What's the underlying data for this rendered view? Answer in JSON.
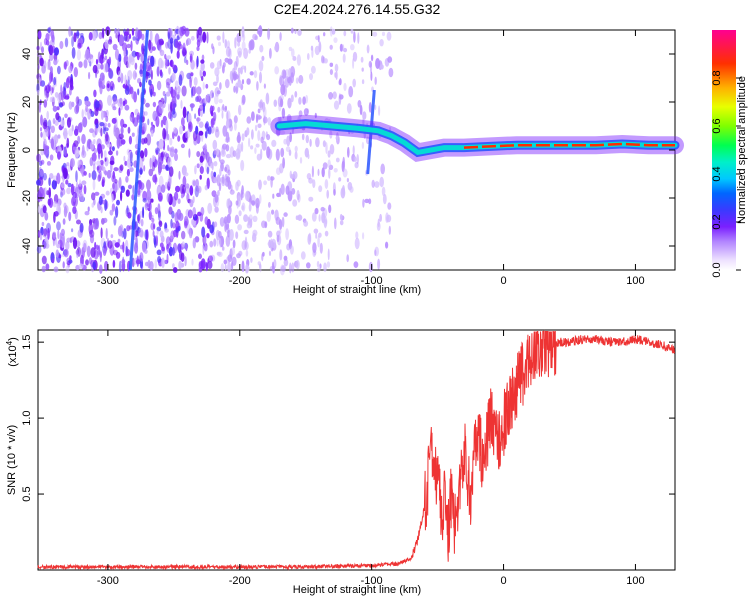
{
  "title": "C2E4.2024.276.14.55.G32",
  "chart_data": [
    {
      "type": "heatmap",
      "xlabel": "Height of straight line (km)",
      "ylabel": "Frequency (Hz)",
      "xlim": [
        -353,
        130
      ],
      "ylim": [
        -50,
        50
      ],
      "xticks": [
        -300,
        -200,
        -100,
        0,
        100
      ],
      "yticks": [
        -40,
        -20,
        0,
        20,
        40
      ],
      "colorbar": {
        "label": "Normalized spectral amplitude",
        "range": [
          0,
          1
        ],
        "ticks": [
          0.0,
          0.2,
          0.4,
          0.6,
          0.8
        ]
      },
      "features": [
        {
          "kind": "broadband-noise",
          "x_range": [
            -353,
            -85
          ],
          "y_range": [
            -50,
            50
          ]
        },
        {
          "kind": "streak",
          "x": [
            -283,
            -270
          ],
          "y": [
            -50,
            50
          ]
        },
        {
          "kind": "streak",
          "x": [
            -103,
            -98
          ],
          "y": [
            -10,
            25
          ]
        },
        {
          "kind": "signal-band",
          "x": [
            -170,
            -150,
            -130,
            -110,
            -95,
            -85,
            -75,
            -65,
            -55,
            -45,
            -30,
            -10,
            10,
            40,
            70,
            90,
            110,
            130
          ],
          "y": [
            10,
            11,
            10,
            9,
            8,
            6,
            3,
            -1,
            0,
            1,
            1,
            1.5,
            2,
            2,
            2,
            2.5,
            2,
            2
          ]
        }
      ]
    },
    {
      "type": "line",
      "xlabel": "Height of straight line (km)",
      "ylabel": "SNR (10 * v/v)",
      "y_multiplier_label": "(x10",
      "y_multiplier_exp": "4",
      "xlim": [
        -353,
        130
      ],
      "ylim": [
        0,
        1.58
      ],
      "xticks": [
        -300,
        -200,
        -100,
        0,
        100
      ],
      "yticks": [
        "0.5",
        "1.0",
        "1.5"
      ],
      "series": [
        {
          "color": "#ee3333",
          "x": [
            -353,
            -300,
            -250,
            -200,
            -150,
            -100,
            -80,
            -70,
            -65,
            -60,
            -57,
            -55,
            -53,
            -50,
            -47,
            -45,
            -42,
            -40,
            -37,
            -35,
            -30,
            -25,
            -20,
            -15,
            -10,
            -5,
            0,
            5,
            10,
            15,
            20,
            25,
            30,
            40,
            50,
            60,
            70,
            80,
            90,
            100,
            110,
            120,
            130
          ],
          "y": [
            0.02,
            0.02,
            0.02,
            0.02,
            0.02,
            0.03,
            0.04,
            0.08,
            0.2,
            0.4,
            0.6,
            0.8,
            0.55,
            0.7,
            0.3,
            0.5,
            0.25,
            0.45,
            0.3,
            0.4,
            0.8,
            0.5,
            0.9,
            0.7,
            1.0,
            0.85,
            0.95,
            1.1,
            1.2,
            1.3,
            1.4,
            1.45,
            1.48,
            1.5,
            1.5,
            1.52,
            1.52,
            1.5,
            1.5,
            1.52,
            1.5,
            1.48,
            1.45
          ]
        }
      ]
    }
  ]
}
